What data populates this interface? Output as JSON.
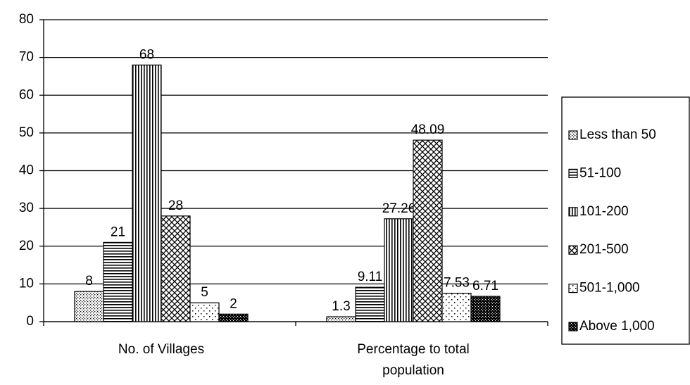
{
  "chart_data": {
    "type": "bar",
    "categories": [
      "No. of Villages",
      "Percentage to total population"
    ],
    "series": [
      {
        "name": "Less than 50",
        "color": "#000000",
        "values": [
          8,
          1.3
        ]
      },
      {
        "name": "51-100",
        "color": "#000000",
        "values": [
          21,
          9.11
        ]
      },
      {
        "name": "101-200",
        "color": "#000000",
        "values": [
          68,
          27.26
        ]
      },
      {
        "name": "201-500",
        "color": "#000000",
        "values": [
          28,
          48.09
        ]
      },
      {
        "name": "501-1,000",
        "color": "#000000",
        "values": [
          5,
          7.53
        ]
      },
      {
        "name": "Above 1,000",
        "color": "#000000",
        "values": [
          2,
          6.71
        ]
      }
    ],
    "ylim": [
      0,
      80
    ],
    "yticks": [
      0,
      10,
      20,
      30,
      40,
      50,
      60,
      70,
      80
    ],
    "grid": true,
    "legend": "right"
  }
}
